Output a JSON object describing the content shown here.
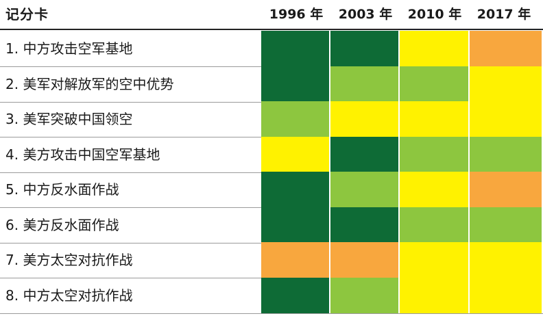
{
  "chart_data": {
    "type": "heatmap",
    "title": "记分卡",
    "columns": [
      "1996 年",
      "2003 年",
      "2010 年",
      "2017 年"
    ],
    "rows": [
      {
        "label": "1. 中方攻击空军基地",
        "ratings": [
          "dark-green",
          "dark-green",
          "yellow",
          "orange"
        ]
      },
      {
        "label": "2. 美军对解放军的空中优势",
        "ratings": [
          "dark-green",
          "light-green",
          "light-green",
          "yellow"
        ]
      },
      {
        "label": "3. 美军突破中国领空",
        "ratings": [
          "light-green",
          "yellow",
          "yellow",
          "yellow"
        ]
      },
      {
        "label": "4. 美方攻击中国空军基地",
        "ratings": [
          "yellow",
          "dark-green",
          "light-green",
          "light-green"
        ]
      },
      {
        "label": "5. 中方反水面作战",
        "ratings": [
          "dark-green",
          "light-green",
          "yellow",
          "orange"
        ]
      },
      {
        "label": "6. 美方反水面作战",
        "ratings": [
          "dark-green",
          "dark-green",
          "light-green",
          "light-green"
        ]
      },
      {
        "label": "7. 美方太空对抗作战",
        "ratings": [
          "orange",
          "orange",
          "yellow",
          "yellow"
        ]
      },
      {
        "label": "8. 中方太空对抗作战",
        "ratings": [
          "dark-green",
          "light-green",
          "yellow",
          "yellow"
        ]
      }
    ],
    "rating_colors": {
      "dark-green": "#0e6b36",
      "light-green": "#8dc63f",
      "yellow": "#fff200",
      "orange": "#f8a73e"
    }
  }
}
